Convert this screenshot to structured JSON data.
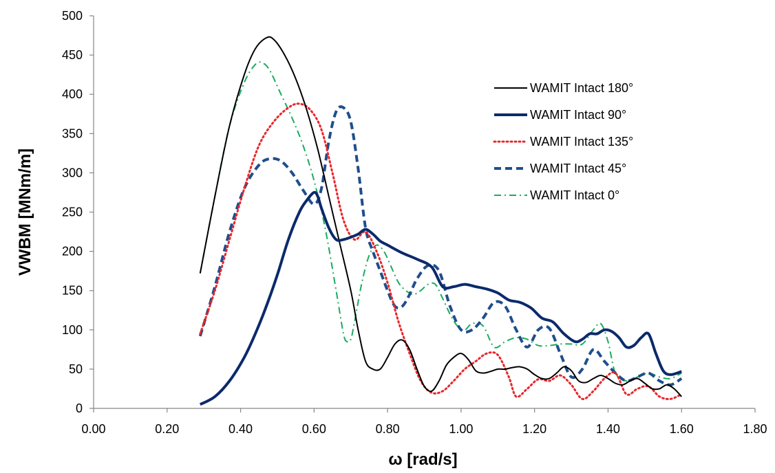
{
  "chart_data": {
    "type": "line",
    "title": "",
    "xlabel": "ω [rad/s]",
    "ylabel": "VWBM [MNm/m]",
    "xlim": [
      0,
      1.8
    ],
    "ylim": [
      0,
      500
    ],
    "xticks": [
      0,
      0.2,
      0.4,
      0.6,
      0.8,
      1.0,
      1.2,
      1.4,
      1.6,
      1.8
    ],
    "xtick_labels": [
      "0.00",
      "0.20",
      "0.40",
      "0.60",
      "0.80",
      "1.00",
      "1.20",
      "1.40",
      "1.60",
      "1.80"
    ],
    "yticks": [
      0,
      50,
      100,
      150,
      200,
      250,
      300,
      350,
      400,
      450,
      500
    ],
    "ytick_labels": [
      "0",
      "50",
      "100",
      "150",
      "200",
      "250",
      "300",
      "350",
      "400",
      "450",
      "500"
    ],
    "grid": false,
    "legend_position": "top-right",
    "series": [
      {
        "name": "WAMIT Intact 180°",
        "color": "#000000",
        "style": "solid",
        "width": 2,
        "x": [
          0.29,
          0.33,
          0.37,
          0.41,
          0.44,
          0.47,
          0.49,
          0.52,
          0.55,
          0.58,
          0.61,
          0.64,
          0.67,
          0.7,
          0.72,
          0.74,
          0.76,
          0.78,
          0.8,
          0.82,
          0.84,
          0.86,
          0.88,
          0.9,
          0.92,
          0.94,
          0.96,
          0.98,
          1.0,
          1.02,
          1.04,
          1.06,
          1.08,
          1.1,
          1.12,
          1.14,
          1.16,
          1.18,
          1.2,
          1.22,
          1.24,
          1.26,
          1.28,
          1.3,
          1.32,
          1.34,
          1.36,
          1.38,
          1.4,
          1.42,
          1.44,
          1.46,
          1.48,
          1.5,
          1.52,
          1.54,
          1.56,
          1.58,
          1.6
        ],
        "y": [
          172,
          270,
          360,
          425,
          458,
          472,
          470,
          450,
          420,
          380,
          330,
          270,
          210,
          150,
          100,
          60,
          50,
          50,
          65,
          82,
          87,
          75,
          50,
          28,
          22,
          35,
          55,
          65,
          70,
          62,
          48,
          45,
          47,
          50,
          50,
          52,
          53,
          50,
          43,
          38,
          38,
          45,
          53,
          48,
          35,
          33,
          38,
          42,
          38,
          32,
          30,
          35,
          38,
          32,
          25,
          25,
          30,
          25,
          15
        ]
      },
      {
        "name": "WAMIT Intact 90°",
        "color": "#0b2a6b",
        "style": "solid",
        "width": 4,
        "x": [
          0.29,
          0.33,
          0.37,
          0.41,
          0.44,
          0.47,
          0.5,
          0.53,
          0.56,
          0.58,
          0.6,
          0.61,
          0.62,
          0.64,
          0.66,
          0.68,
          0.7,
          0.72,
          0.74,
          0.76,
          0.78,
          0.8,
          0.84,
          0.88,
          0.92,
          0.95,
          0.98,
          1.01,
          1.04,
          1.07,
          1.1,
          1.13,
          1.16,
          1.19,
          1.22,
          1.25,
          1.28,
          1.31,
          1.33,
          1.35,
          1.37,
          1.39,
          1.41,
          1.43,
          1.45,
          1.47,
          1.49,
          1.51,
          1.53,
          1.55,
          1.57,
          1.6
        ],
        "y": [
          5,
          15,
          35,
          65,
          95,
          130,
          170,
          215,
          250,
          265,
          275,
          270,
          255,
          230,
          215,
          215,
          218,
          222,
          228,
          222,
          213,
          208,
          198,
          190,
          180,
          155,
          155,
          158,
          155,
          152,
          147,
          138,
          135,
          128,
          115,
          110,
          95,
          85,
          88,
          95,
          95,
          100,
          98,
          90,
          78,
          80,
          90,
          95,
          70,
          48,
          43,
          47
        ]
      },
      {
        "name": "WAMIT Intact 135°",
        "color": "#e8272b",
        "style": "dotted",
        "width": 3,
        "x": [
          0.29,
          0.33,
          0.37,
          0.41,
          0.45,
          0.49,
          0.53,
          0.56,
          0.59,
          0.62,
          0.65,
          0.68,
          0.71,
          0.74,
          0.77,
          0.8,
          0.83,
          0.86,
          0.89,
          0.92,
          0.95,
          0.98,
          1.01,
          1.04,
          1.07,
          1.1,
          1.13,
          1.15,
          1.18,
          1.21,
          1.24,
          1.27,
          1.3,
          1.33,
          1.36,
          1.39,
          1.42,
          1.45,
          1.48,
          1.51,
          1.54,
          1.57,
          1.6
        ],
        "y": [
          95,
          150,
          215,
          280,
          335,
          365,
          383,
          388,
          380,
          355,
          300,
          240,
          215,
          225,
          200,
          160,
          110,
          70,
          35,
          20,
          22,
          35,
          50,
          60,
          70,
          68,
          40,
          15,
          25,
          37,
          35,
          42,
          30,
          12,
          22,
          38,
          45,
          18,
          25,
          28,
          15,
          12,
          18
        ]
      },
      {
        "name": "WAMIT Intact 45°",
        "color": "#1f4e8c",
        "style": "dashed",
        "width": 4,
        "x": [
          0.29,
          0.33,
          0.37,
          0.41,
          0.45,
          0.48,
          0.51,
          0.54,
          0.57,
          0.6,
          0.62,
          0.64,
          0.66,
          0.68,
          0.7,
          0.72,
          0.74,
          0.76,
          0.78,
          0.8,
          0.82,
          0.84,
          0.86,
          0.88,
          0.91,
          0.94,
          0.97,
          1.0,
          1.03,
          1.06,
          1.09,
          1.12,
          1.15,
          1.18,
          1.21,
          1.24,
          1.27,
          1.3,
          1.33,
          1.36,
          1.39,
          1.42,
          1.45,
          1.48,
          1.51,
          1.54,
          1.57,
          1.6
        ],
        "y": [
          92,
          155,
          225,
          280,
          310,
          318,
          315,
          300,
          278,
          260,
          280,
          340,
          378,
          383,
          365,
          305,
          230,
          200,
          175,
          150,
          130,
          130,
          145,
          165,
          182,
          175,
          130,
          100,
          100,
          115,
          135,
          130,
          100,
          78,
          100,
          102,
          70,
          40,
          50,
          75,
          60,
          45,
          35,
          40,
          45,
          35,
          30,
          38
        ]
      },
      {
        "name": "WAMIT Intact 0°",
        "color": "#1aab5e",
        "style": "dashdot",
        "width": 2,
        "x": [
          0.29,
          0.33,
          0.37,
          0.41,
          0.44,
          0.46,
          0.48,
          0.51,
          0.54,
          0.57,
          0.6,
          0.63,
          0.66,
          0.68,
          0.69,
          0.7,
          0.71,
          0.73,
          0.75,
          0.77,
          0.79,
          0.81,
          0.83,
          0.85,
          0.87,
          0.89,
          0.91,
          0.93,
          0.95,
          0.97,
          0.99,
          1.01,
          1.03,
          1.06,
          1.09,
          1.12,
          1.15,
          1.18,
          1.21,
          1.24,
          1.27,
          1.3,
          1.33,
          1.36,
          1.38,
          1.4,
          1.42,
          1.45,
          1.48,
          1.51,
          1.54,
          1.57,
          1.6
        ],
        "y": [
          172,
          270,
          360,
          415,
          438,
          440,
          430,
          400,
          370,
          335,
          290,
          230,
          150,
          95,
          85,
          88,
          110,
          160,
          195,
          208,
          200,
          180,
          160,
          150,
          145,
          150,
          158,
          158,
          140,
          120,
          105,
          100,
          108,
          105,
          78,
          85,
          90,
          88,
          80,
          80,
          82,
          82,
          82,
          100,
          108,
          85,
          45,
          35,
          40,
          45,
          40,
          38,
          45
        ]
      }
    ]
  }
}
